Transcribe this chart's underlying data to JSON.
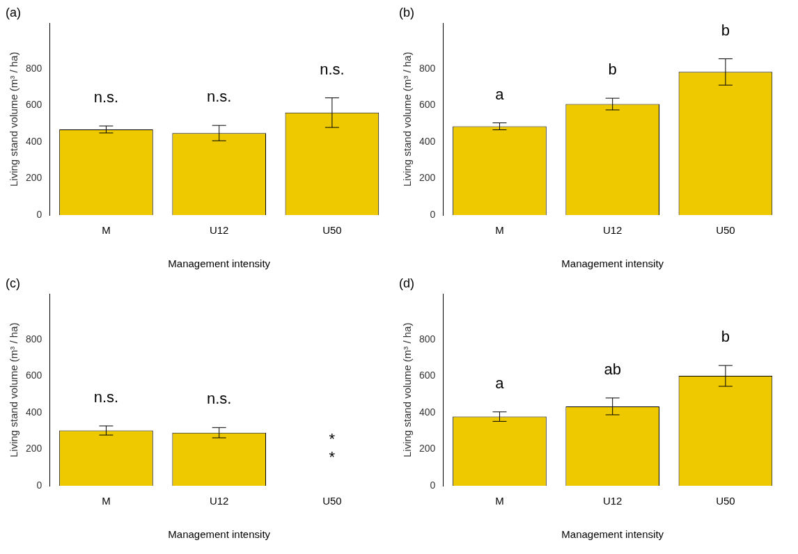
{
  "chart_data": [
    {
      "type": "bar",
      "title": "(a)",
      "xlabel": "Management intensity",
      "ylabel": "Living stand volume (m³ / ha)",
      "categories": [
        "M",
        "U12",
        "U50"
      ],
      "values": [
        469,
        449,
        561
      ],
      "errors": [
        19,
        42,
        81
      ],
      "color": "#eec900",
      "ylim": [
        0,
        1050
      ],
      "yticks": [
        0,
        200,
        400,
        600,
        800
      ],
      "annotations": [
        "n.s.",
        "n.s.",
        "n.s."
      ]
    },
    {
      "type": "bar",
      "title": "(b)",
      "xlabel": "Management intensity",
      "ylabel": "Living stand volume (m³ / ha)",
      "categories": [
        "M",
        "U12",
        "U50"
      ],
      "values": [
        486,
        608,
        784
      ],
      "errors": [
        19,
        32,
        72
      ],
      "color": "#eec900",
      "ylim": [
        0,
        1050
      ],
      "yticks": [
        0,
        200,
        400,
        600,
        800
      ],
      "annotations": [
        "a",
        "b",
        "b"
      ]
    },
    {
      "type": "bar",
      "title": "(c)",
      "xlabel": "Management intensity",
      "ylabel": "Living stand volume (m³ / ha)",
      "categories": [
        "M",
        "U12",
        "U50"
      ],
      "values": [
        303,
        291,
        0
      ],
      "errors": [
        25,
        28,
        null
      ],
      "color": "#eec900",
      "ylim": [
        0,
        1050
      ],
      "yticks": [
        0,
        200,
        400,
        600,
        800
      ],
      "annotations": [
        "n.s.",
        "n.s.",
        "*",
        "*"
      ]
    },
    {
      "type": "bar",
      "title": "(d)",
      "xlabel": "Management intensity",
      "ylabel": "Living stand volume (m³ / ha)",
      "categories": [
        "M",
        "U12",
        "U50"
      ],
      "values": [
        379,
        435,
        602
      ],
      "errors": [
        26,
        46,
        57
      ],
      "color": "#eec900",
      "ylim": [
        0,
        1050
      ],
      "yticks": [
        0,
        200,
        400,
        600,
        800
      ],
      "annotations": [
        "a",
        "ab",
        "b"
      ]
    }
  ]
}
